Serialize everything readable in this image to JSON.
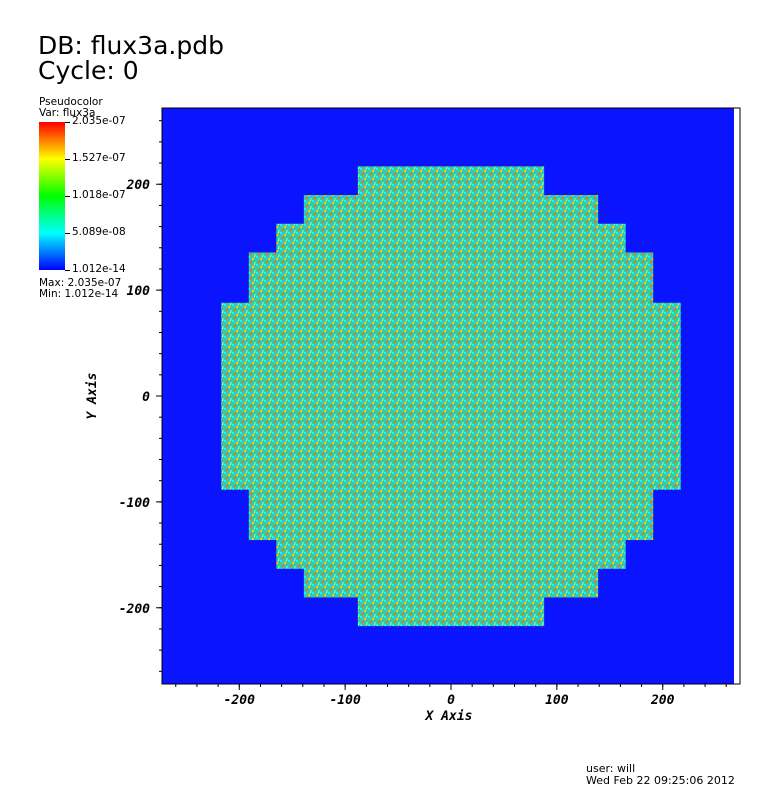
{
  "header": {
    "db_line": "DB: flux3a.pdb",
    "cycle_line": "Cycle: 0"
  },
  "legend": {
    "plot_type": "Pseudocolor",
    "var_line": "Var: flux3a",
    "ticks": [
      "2.035e-07",
      "1.527e-07",
      "1.018e-07",
      "5.089e-08",
      "1.012e-14"
    ],
    "max_line": "Max: 2.035e-07",
    "min_line": "Min: 1.012e-14",
    "colormap": [
      "#0000ff",
      "#00ffff",
      "#00ff00",
      "#ffff00",
      "#ff0000"
    ]
  },
  "footer": {
    "user_line": "user: will",
    "date_line": "Wed Feb 22 09:25:06 2012"
  },
  "chart_data": {
    "type": "heatmap",
    "title": "",
    "xlabel": "X Axis",
    "ylabel": "Y Axis",
    "xlim": [
      -273,
      273
    ],
    "ylim": [
      -272,
      272
    ],
    "x_ticks": [
      -200,
      -100,
      0,
      100,
      200
    ],
    "y_ticks": [
      200,
      100,
      0,
      -100,
      -200
    ],
    "x_tick_labels": [
      "-200",
      "-100",
      "0",
      "100",
      "200"
    ],
    "y_tick_labels": [
      "200",
      "100",
      "0",
      "-100",
      "-200"
    ],
    "background_color": "#0a14ff",
    "core_color": "#3cc8a8",
    "core_speckle_colors": [
      "#00ffff",
      "#ffd000",
      "#ff6a00",
      "#4df0a0"
    ],
    "core_rows": [
      {
        "y": [
          189.8,
          216.9
        ],
        "x": [
          -88,
          88
        ]
      },
      {
        "y": [
          162.7,
          189.8
        ],
        "x": [
          -139,
          139
        ]
      },
      {
        "y": [
          135.6,
          162.7
        ],
        "x": [
          -165,
          165
        ]
      },
      {
        "y": [
          88.1,
          135.6
        ],
        "x": [
          -191,
          191
        ]
      },
      {
        "y": [
          -88.1,
          88.1
        ],
        "x": [
          -217,
          217
        ]
      },
      {
        "y": [
          -135.6,
          -88.1
        ],
        "x": [
          -191,
          191
        ]
      },
      {
        "y": [
          -162.7,
          -135.6
        ],
        "x": [
          -165,
          165
        ]
      },
      {
        "y": [
          -189.8,
          -162.7
        ],
        "x": [
          -139,
          139
        ]
      },
      {
        "y": [
          -216.9,
          -189.8
        ],
        "x": [
          -88,
          88
        ]
      }
    ]
  }
}
